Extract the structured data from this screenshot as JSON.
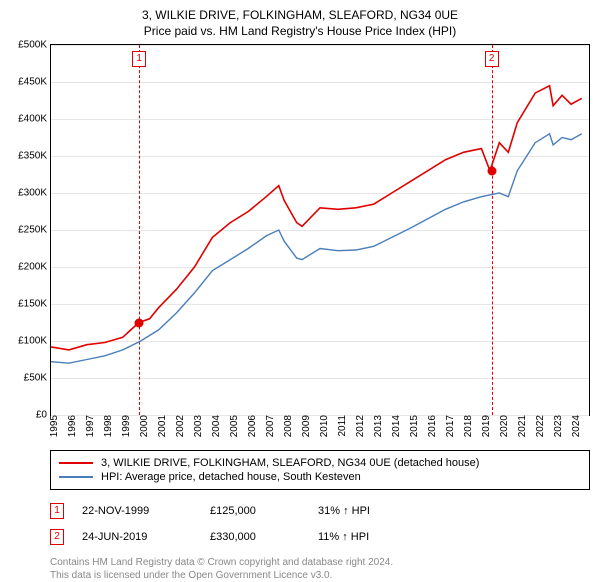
{
  "title": "3, WILKIE DRIVE, FOLKINGHAM, SLEAFORD, NG34 0UE",
  "subtitle": "Price paid vs. HM Land Registry's House Price Index (HPI)",
  "chart": {
    "type": "line",
    "background_color": "#ffffff",
    "grid_color": "#e6e6e6",
    "border_color": "#000000",
    "ylim": [
      0,
      500000
    ],
    "ytick_step": 50000,
    "ytick_labels": [
      "£0",
      "£50K",
      "£100K",
      "£150K",
      "£200K",
      "£250K",
      "£300K",
      "£350K",
      "£400K",
      "£450K",
      "£500K"
    ],
    "xlim": [
      1995,
      2025
    ],
    "xticks": [
      1995,
      1996,
      1997,
      1998,
      1999,
      2000,
      2001,
      2002,
      2003,
      2004,
      2005,
      2006,
      2007,
      2008,
      2009,
      2010,
      2011,
      2012,
      2013,
      2014,
      2015,
      2016,
      2017,
      2018,
      2019,
      2020,
      2021,
      2022,
      2023,
      2024
    ],
    "series": [
      {
        "name": "3, WILKIE DRIVE, FOLKINGHAM, SLEAFORD, NG34 0UE (detached house)",
        "color": "#e00000",
        "line_width": 1.6,
        "data": [
          [
            1995,
            92000
          ],
          [
            1996,
            88000
          ],
          [
            1997,
            95000
          ],
          [
            1998,
            98000
          ],
          [
            1999,
            105000
          ],
          [
            1999.9,
            125000
          ],
          [
            2000.5,
            130000
          ],
          [
            2001,
            145000
          ],
          [
            2002,
            170000
          ],
          [
            2003,
            200000
          ],
          [
            2004,
            240000
          ],
          [
            2005,
            260000
          ],
          [
            2006,
            275000
          ],
          [
            2007,
            295000
          ],
          [
            2007.7,
            310000
          ],
          [
            2008,
            290000
          ],
          [
            2008.7,
            260000
          ],
          [
            2009,
            255000
          ],
          [
            2010,
            280000
          ],
          [
            2011,
            278000
          ],
          [
            2012,
            280000
          ],
          [
            2013,
            285000
          ],
          [
            2014,
            300000
          ],
          [
            2015,
            315000
          ],
          [
            2016,
            330000
          ],
          [
            2017,
            345000
          ],
          [
            2018,
            355000
          ],
          [
            2019,
            360000
          ],
          [
            2019.48,
            330000
          ],
          [
            2020,
            368000
          ],
          [
            2020.5,
            355000
          ],
          [
            2021,
            395000
          ],
          [
            2022,
            435000
          ],
          [
            2022.8,
            445000
          ],
          [
            2023,
            418000
          ],
          [
            2023.5,
            432000
          ],
          [
            2024,
            420000
          ],
          [
            2024.6,
            428000
          ]
        ]
      },
      {
        "name": "HPI: Average price, detached house, South Kesteven",
        "color": "#4a7ebb",
        "line_width": 1.4,
        "data": [
          [
            1995,
            72000
          ],
          [
            1996,
            70000
          ],
          [
            1997,
            75000
          ],
          [
            1998,
            80000
          ],
          [
            1999,
            88000
          ],
          [
            2000,
            100000
          ],
          [
            2001,
            115000
          ],
          [
            2002,
            138000
          ],
          [
            2003,
            165000
          ],
          [
            2004,
            195000
          ],
          [
            2005,
            210000
          ],
          [
            2006,
            225000
          ],
          [
            2007,
            242000
          ],
          [
            2007.7,
            250000
          ],
          [
            2008,
            235000
          ],
          [
            2008.7,
            212000
          ],
          [
            2009,
            210000
          ],
          [
            2010,
            225000
          ],
          [
            2011,
            222000
          ],
          [
            2012,
            223000
          ],
          [
            2013,
            228000
          ],
          [
            2014,
            240000
          ],
          [
            2015,
            252000
          ],
          [
            2016,
            265000
          ],
          [
            2017,
            278000
          ],
          [
            2018,
            288000
          ],
          [
            2019,
            295000
          ],
          [
            2020,
            300000
          ],
          [
            2020.5,
            295000
          ],
          [
            2021,
            330000
          ],
          [
            2022,
            368000
          ],
          [
            2022.8,
            380000
          ],
          [
            2023,
            365000
          ],
          [
            2023.5,
            375000
          ],
          [
            2024,
            372000
          ],
          [
            2024.6,
            380000
          ]
        ]
      }
    ],
    "events": [
      {
        "n": "1",
        "year": 1999.9,
        "price": 125000,
        "date_label": "22-NOV-1999",
        "price_label": "£125,000",
        "pct_label": "31% ↑ HPI"
      },
      {
        "n": "2",
        "year": 2019.48,
        "price": 330000,
        "date_label": "24-JUN-2019",
        "price_label": "£330,000",
        "pct_label": "11% ↑ HPI"
      }
    ],
    "marker_color": "#e00000",
    "axis_fontsize": 10,
    "title_fontsize": 12
  },
  "legend": {
    "items": [
      {
        "color": "#e00000",
        "label": "3, WILKIE DRIVE, FOLKINGHAM, SLEAFORD, NG34 0UE (detached house)"
      },
      {
        "color": "#4a7ebb",
        "label": "HPI: Average price, detached house, South Kesteven"
      }
    ]
  },
  "attribution": {
    "line1": "Contains HM Land Registry data © Crown copyright and database right 2024.",
    "line2": "This data is licensed under the Open Government Licence v3.0."
  }
}
